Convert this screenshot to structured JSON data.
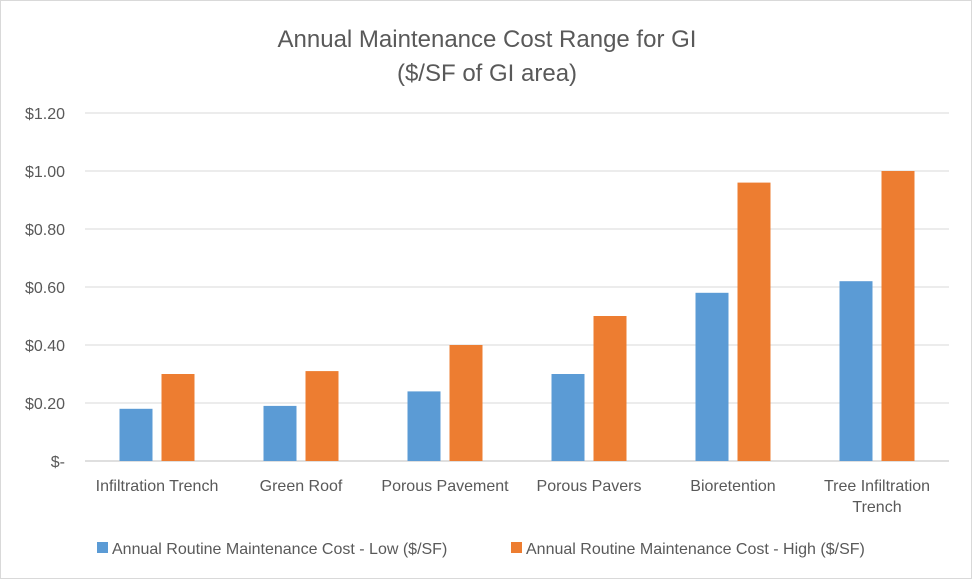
{
  "chart_data": {
    "type": "bar",
    "title": "Annual Maintenance Cost Range for GI",
    "subtitle": "($/SF of GI area)",
    "xlabel": "",
    "ylabel": "",
    "categories": [
      "Infiltration Trench",
      "Green Roof",
      "Porous Pavement",
      "Porous Pavers",
      "Bioretention",
      "Tree Infiltration Trench"
    ],
    "series": [
      {
        "name": "Annual Routine Maintenance Cost - Low ($/SF)",
        "color": "#5B9BD5",
        "values": [
          0.18,
          0.19,
          0.24,
          0.3,
          0.58,
          0.62
        ]
      },
      {
        "name": "Annual Routine Maintenance Cost - High ($/SF)",
        "color": "#ED7D31",
        "values": [
          0.3,
          0.31,
          0.4,
          0.5,
          0.96,
          1.0
        ]
      }
    ],
    "ylim": [
      0,
      1.2
    ],
    "yticks": [
      {
        "value": 0,
        "label": "$-"
      },
      {
        "value": 0.2,
        "label": "$0.20"
      },
      {
        "value": 0.4,
        "label": "$0.40"
      },
      {
        "value": 0.6,
        "label": "$0.60"
      },
      {
        "value": 0.8,
        "label": "$0.80"
      },
      {
        "value": 1.0,
        "label": "$1.00"
      },
      {
        "value": 1.2,
        "label": "$1.20"
      }
    ],
    "grid": true,
    "legend_position": "bottom-left"
  }
}
